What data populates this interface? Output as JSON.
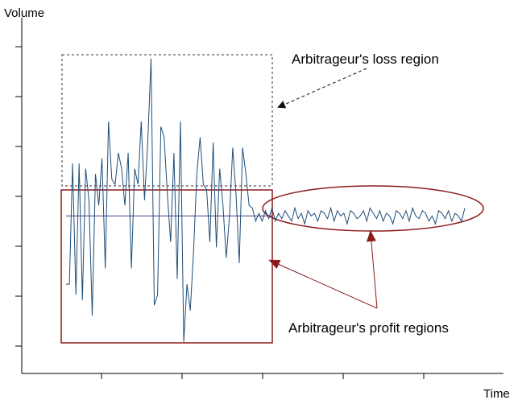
{
  "chart_data": {
    "type": "line",
    "xlabel": "Time",
    "ylabel": "Volume",
    "y_reference": 0,
    "series": [
      {
        "color": "#1f4e79",
        "values": [
          -1.3,
          -1.3,
          1.0,
          -1.5,
          1.0,
          -1.6,
          0.9,
          0.3,
          -1.9,
          0.8,
          0.2,
          1.1,
          -1.0,
          1.8,
          0.7,
          0.6,
          1.2,
          0.9,
          0.2,
          1.2,
          -1.0,
          0.9,
          0.6,
          1.8,
          0.3,
          1.4,
          3.0,
          -1.7,
          -1.5,
          1.7,
          1.5,
          0.4,
          -0.5,
          1.2,
          -1.2,
          1.8,
          -2.4,
          -1.3,
          -1.8,
          -0.7,
          0.8,
          1.5,
          0.6,
          0.5,
          -0.5,
          1.4,
          -0.6,
          0.9,
          0.2,
          -0.8,
          0.0,
          1.3,
          0.4,
          -0.9,
          1.3,
          0.8,
          0.2,
          0.15,
          -0.1,
          0.05,
          -0.1,
          0.1,
          -0.05,
          0.15,
          -0.1,
          0.05,
          -0.05,
          0.1,
          0.0,
          -0.1,
          0.15,
          -0.05,
          0.05,
          -0.15,
          0.1,
          0.0,
          0.05,
          -0.1,
          0.1,
          0.05,
          -0.05,
          0.15,
          -0.1,
          0.1,
          0.0,
          0.05,
          -0.15,
          0.1,
          0.05,
          -0.05,
          0.0,
          0.1,
          -0.1,
          0.15,
          0.05,
          -0.05,
          0.1,
          -0.1,
          0.05,
          0.0,
          -0.15,
          0.1,
          0.05,
          -0.05,
          0.1,
          -0.1,
          0.15,
          0.0,
          -0.05,
          0.1,
          0.05,
          -0.1,
          0.0,
          -0.15,
          0.1,
          0.05,
          -0.05,
          0.1,
          -0.1,
          0.05,
          0.0,
          -0.1,
          0.15
        ]
      }
    ],
    "ylim": [
      -3,
      3.5
    ],
    "grid": false,
    "x_ticks": 5,
    "y_ticks": 7,
    "annotations": {
      "loss_label": "Arbitrageur's loss region",
      "profit_label": "Arbitrageur's profit regions"
    },
    "colors": {
      "series": "#1f4e79",
      "profit_region": "#8b1a1a",
      "loss_region": "#333333",
      "axis": "#000000"
    }
  }
}
